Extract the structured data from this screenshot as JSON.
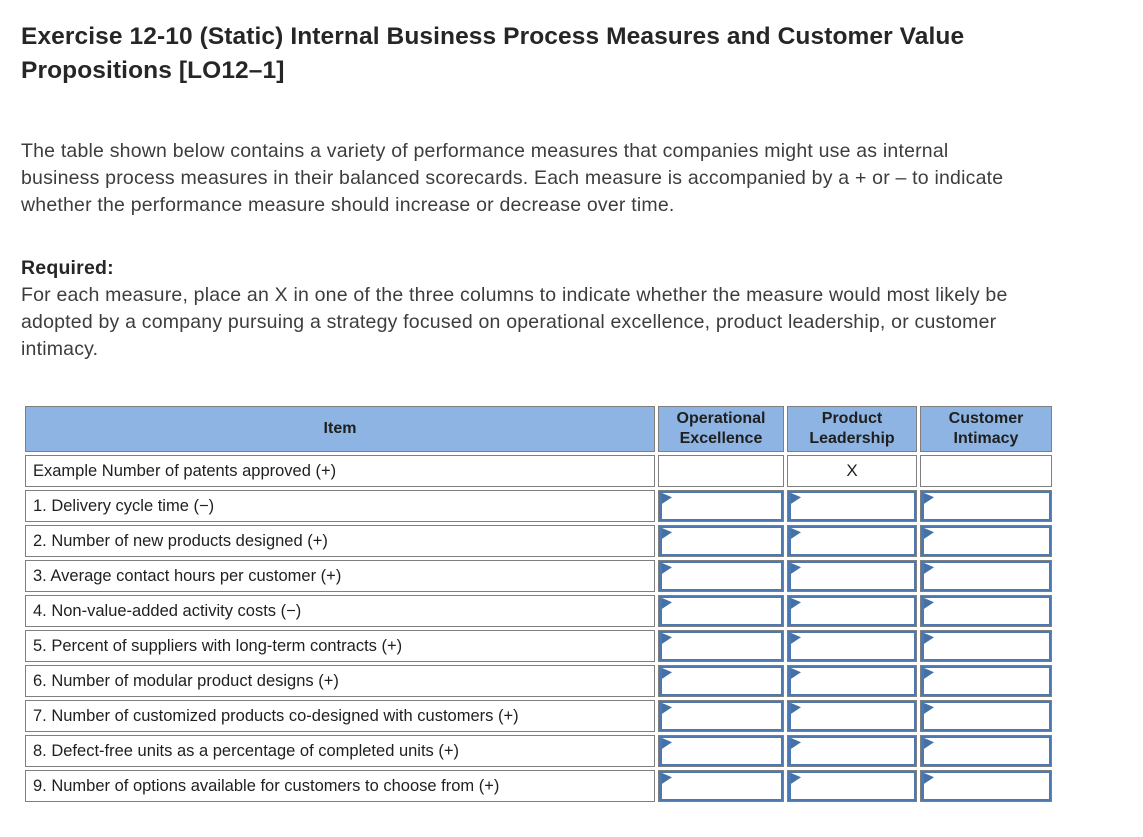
{
  "page": {
    "title": "Exercise 12-10 (Static) Internal Business Process Measures and Customer Value Propositions [LO12–1]",
    "intro": "The table shown below contains a variety of performance measures that companies might use as internal business process measures in their balanced scorecards. Each measure is accompanied by a + or – to indicate whether the performance measure should increase or decrease over time.",
    "required_label": "Required:",
    "required_text": "For each measure, place an X in one of the three columns to indicate whether the measure would most likely be adopted by a company pursuing a strategy focused on operational excellence, product leadership, or customer intimacy."
  },
  "table": {
    "headers": {
      "item": "Item",
      "operational_excellence": "Operational Excellence",
      "product_leadership": "Product Leadership",
      "customer_intimacy": "Customer Intimacy"
    },
    "example_row": {
      "item": "Example Number of patents approved (+)",
      "operational_excellence": "",
      "product_leadership": "X",
      "customer_intimacy": ""
    },
    "rows": [
      {
        "item": "1. Delivery cycle time (−)"
      },
      {
        "item": "2. Number of new products designed (+)"
      },
      {
        "item": "3. Average contact hours per customer (+)"
      },
      {
        "item": "4. Non-value-added activity costs (−)"
      },
      {
        "item": "5. Percent of suppliers with long-term contracts (+)"
      },
      {
        "item": "6. Number of modular product designs (+)"
      },
      {
        "item": "7. Number of customized products co-designed with customers (+)"
      },
      {
        "item": "8. Defect-free units as a percentage of completed units (+)"
      },
      {
        "item": "9. Number of options available for customers to choose from (+)"
      }
    ]
  },
  "colors": {
    "header_bg": "#8db4e2",
    "grid_border": "#7f7f7f",
    "input_border": "#4d79b3",
    "input_marker": "#4472a8",
    "title_text": "#262626",
    "body_text": "#3d3d3d"
  },
  "icons": {
    "input_marker": "answer-cell-flag-triangle"
  }
}
